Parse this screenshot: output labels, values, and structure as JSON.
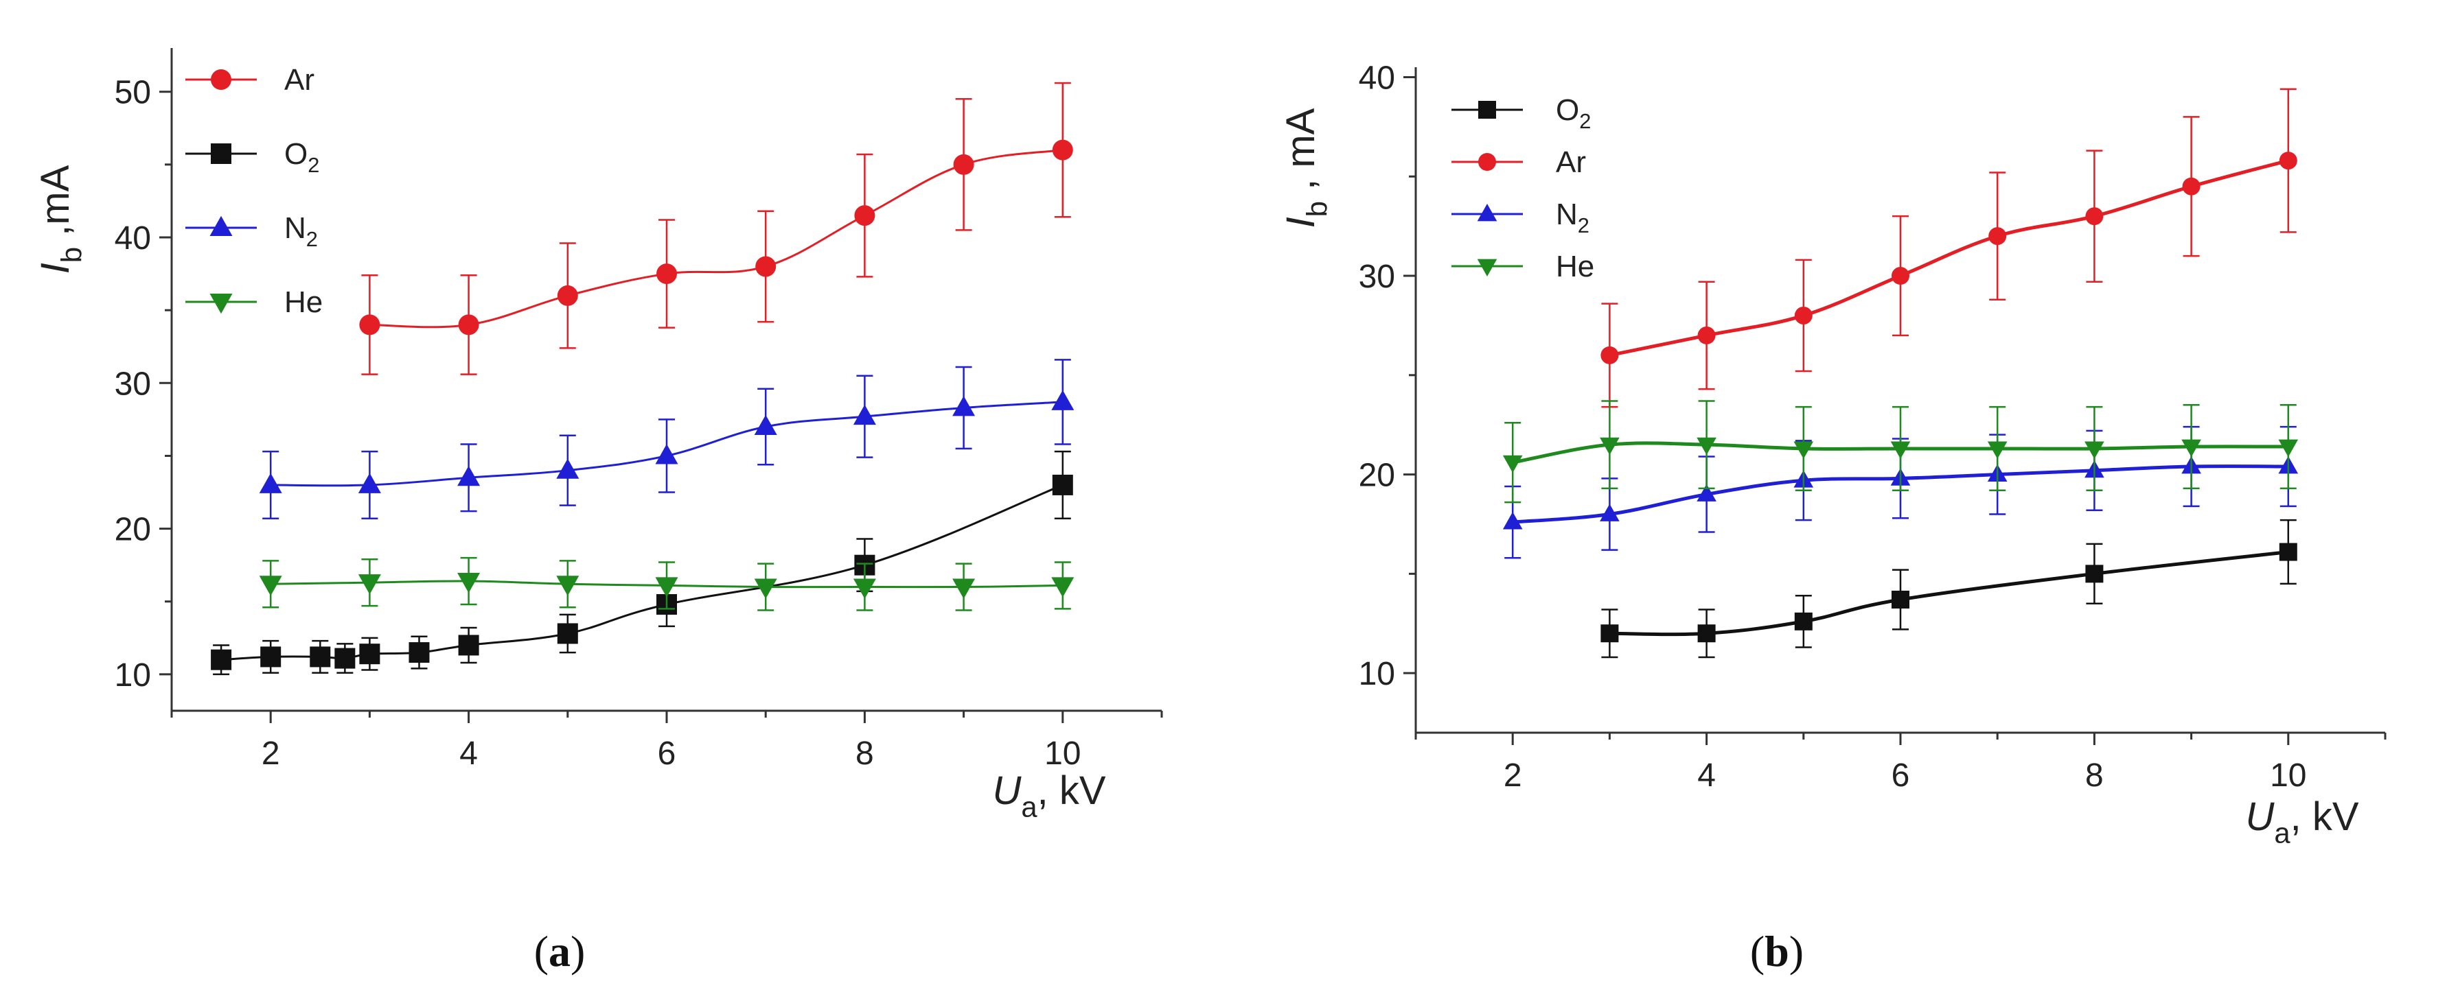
{
  "chart_data": [
    {
      "panel_label": "(a)",
      "type": "line",
      "title": "",
      "ylabel": {
        "symbol": "I",
        "sub": "b",
        "unit": " ,mA"
      },
      "xlabel": {
        "symbol": "U",
        "sub": "a",
        "unit": ", kV"
      },
      "xlim": [
        1.0,
        11.0
      ],
      "ylim": [
        7.5,
        53
      ],
      "xticks": [
        2,
        4,
        6,
        8,
        10
      ],
      "yticks": [
        10,
        20,
        30,
        40,
        50
      ],
      "grid": false,
      "legend_position": "top-left",
      "legend_order": [
        "Ar",
        "O2",
        "N2",
        "He"
      ],
      "series": [
        {
          "name": "Ar",
          "label": "Ar",
          "sub": "",
          "color": "#e31e24",
          "marker": "circle",
          "x": [
            3,
            4,
            5,
            6,
            7,
            8,
            9,
            10
          ],
          "y": [
            34,
            34,
            36,
            37.5,
            38,
            41.5,
            45,
            46
          ],
          "err": [
            3.4,
            3.4,
            3.6,
            3.7,
            3.8,
            4.2,
            4.5,
            4.6
          ]
        },
        {
          "name": "O2",
          "label": "O",
          "sub": "2",
          "color": "#111111",
          "marker": "square",
          "x": [
            1.5,
            2,
            2.5,
            2.75,
            3,
            3.5,
            4,
            5,
            6,
            8,
            10
          ],
          "y": [
            11,
            11.2,
            11.2,
            11.1,
            11.4,
            11.5,
            12,
            12.8,
            14.8,
            17.5,
            23
          ],
          "err": [
            1.0,
            1.1,
            1.1,
            1.0,
            1.1,
            1.1,
            1.2,
            1.3,
            1.5,
            1.8,
            2.3
          ]
        },
        {
          "name": "N2",
          "label": "N",
          "sub": "2",
          "color": "#1f1fd6",
          "marker": "triangle-up",
          "x": [
            2,
            3,
            4,
            5,
            6,
            7,
            8,
            9,
            10
          ],
          "y": [
            23,
            23,
            23.5,
            24,
            25,
            27,
            27.7,
            28.3,
            28.7
          ],
          "err": [
            2.3,
            2.3,
            2.3,
            2.4,
            2.5,
            2.6,
            2.8,
            2.8,
            2.9
          ]
        },
        {
          "name": "He",
          "label": "He",
          "sub": "",
          "color": "#1e8a1e",
          "marker": "triangle-down",
          "x": [
            2,
            3,
            4,
            5,
            6,
            7,
            8,
            9,
            10
          ],
          "y": [
            16.2,
            16.3,
            16.4,
            16.2,
            16.1,
            16,
            16,
            16,
            16.1
          ],
          "err": [
            1.6,
            1.6,
            1.6,
            1.6,
            1.6,
            1.6,
            1.6,
            1.6,
            1.6
          ]
        }
      ]
    },
    {
      "panel_label": "(b)",
      "type": "line",
      "title": "",
      "ylabel": {
        "symbol": "I",
        "sub": "b",
        "unit": " , mA"
      },
      "xlabel": {
        "symbol": "U",
        "sub": "a",
        "unit": ", kV"
      },
      "xlim": [
        1.0,
        11.0
      ],
      "ylim": [
        7,
        40.5
      ],
      "xticks": [
        2,
        4,
        6,
        8,
        10
      ],
      "yticks": [
        10,
        20,
        30,
        40
      ],
      "grid": false,
      "legend_position": "top-left",
      "legend_order": [
        "O2",
        "Ar",
        "N2",
        "He"
      ],
      "series": [
        {
          "name": "O2",
          "label": "O",
          "sub": "2",
          "color": "#111111",
          "marker": "square",
          "x": [
            3,
            4,
            5,
            6,
            8,
            10
          ],
          "y": [
            12,
            12,
            12.6,
            13.7,
            15,
            16.1
          ],
          "err": [
            1.2,
            1.2,
            1.3,
            1.5,
            1.5,
            1.6
          ]
        },
        {
          "name": "Ar",
          "label": "Ar",
          "sub": "",
          "color": "#e31e24",
          "marker": "circle",
          "x": [
            3,
            4,
            5,
            6,
            7,
            8,
            9,
            10
          ],
          "y": [
            26,
            27,
            28,
            30,
            32,
            33,
            34.5,
            35.8
          ],
          "err": [
            2.6,
            2.7,
            2.8,
            3.0,
            3.2,
            3.3,
            3.5,
            3.6
          ]
        },
        {
          "name": "N2",
          "label": "N",
          "sub": "2",
          "color": "#1f1fd6",
          "marker": "triangle-up",
          "x": [
            2,
            3,
            4,
            5,
            6,
            7,
            8,
            9,
            10
          ],
          "y": [
            17.6,
            18,
            19,
            19.7,
            19.8,
            20,
            20.2,
            20.4,
            20.4
          ],
          "err": [
            1.8,
            1.8,
            1.9,
            2.0,
            2.0,
            2.0,
            2.0,
            2.0,
            2.0
          ]
        },
        {
          "name": "He",
          "label": "He",
          "sub": "",
          "color": "#1e8a1e",
          "marker": "triangle-down",
          "x": [
            2,
            3,
            4,
            5,
            6,
            7,
            8,
            9,
            10
          ],
          "y": [
            20.6,
            21.5,
            21.5,
            21.3,
            21.3,
            21.3,
            21.3,
            21.4,
            21.4
          ],
          "err": [
            2.0,
            2.2,
            2.2,
            2.1,
            2.1,
            2.1,
            2.1,
            2.1,
            2.1
          ]
        }
      ]
    }
  ]
}
